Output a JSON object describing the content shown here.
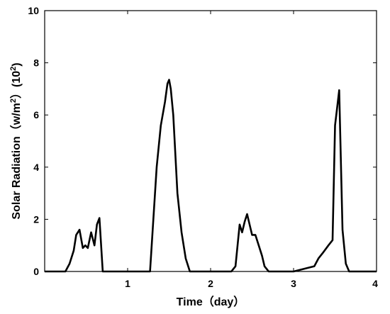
{
  "chart_data": {
    "type": "line",
    "title": "",
    "xlabel": "Time（day）",
    "ylabel_parts": [
      "Solar Radiation（w/m",
      "2",
      "）(10",
      "2",
      ")"
    ],
    "xlim": [
      0,
      4
    ],
    "ylim": [
      0,
      10
    ],
    "xticks": [
      1,
      2,
      3,
      4
    ],
    "yticks": [
      0,
      2,
      4,
      6,
      8,
      10
    ],
    "grid": false,
    "legend": "none",
    "line_color": "#000000",
    "series": [
      {
        "x": [
          0,
          0.25,
          0.3,
          0.35,
          0.38,
          0.42,
          0.46,
          0.49,
          0.52,
          0.56,
          0.6,
          0.63,
          0.66,
          0.7,
          0.73,
          0.78,
          1.0,
          1.2,
          1.27,
          1.3,
          1.35,
          1.4,
          1.45,
          1.48,
          1.5,
          1.52,
          1.55,
          1.6,
          1.65,
          1.7,
          1.75,
          2.0,
          2.25,
          2.3,
          2.35,
          2.38,
          2.41,
          2.44,
          2.47,
          2.5,
          2.54,
          2.58,
          2.62,
          2.65,
          2.7,
          2.75,
          3.0,
          3.25,
          3.3,
          3.35,
          3.42,
          3.47,
          3.5,
          3.55,
          3.59,
          3.63,
          3.67,
          3.72,
          3.78,
          4.0
        ],
        "y": [
          0,
          0,
          0.3,
          0.8,
          1.4,
          1.6,
          0.9,
          1.0,
          0.9,
          1.5,
          1.0,
          1.8,
          2.05,
          0,
          0,
          0,
          0,
          0,
          0,
          1.5,
          4.0,
          5.6,
          6.5,
          7.2,
          7.35,
          7.0,
          6.0,
          3.0,
          1.5,
          0.5,
          0,
          0,
          0,
          0.2,
          1.8,
          1.5,
          1.9,
          2.2,
          1.8,
          1.4,
          1.4,
          1.0,
          0.6,
          0.2,
          0,
          0,
          0,
          0.2,
          0.5,
          0.7,
          1.0,
          1.2,
          5.6,
          6.95,
          1.6,
          0.3,
          0,
          0,
          0,
          0
        ]
      }
    ]
  }
}
